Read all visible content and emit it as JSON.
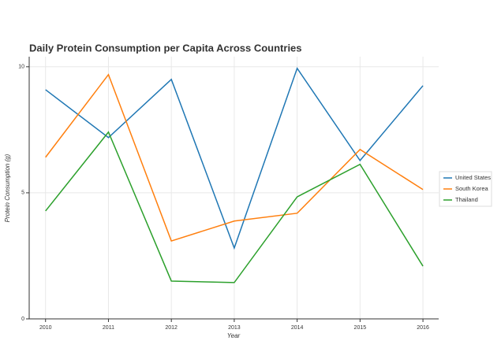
{
  "chart_data": {
    "type": "line",
    "title": "Daily Protein Consumption per Capita Across Countries",
    "x_label": "Year",
    "y_label": "Protein Consumption (g)",
    "x": [
      2010,
      2011,
      2012,
      2013,
      2014,
      2015,
      2016
    ],
    "series": [
      {
        "name": "United States",
        "color": "#1f77b4",
        "values": [
          9.09,
          7.19,
          9.5,
          2.81,
          9.94,
          6.28,
          9.25
        ]
      },
      {
        "name": "South Korea",
        "color": "#ff7f0e",
        "values": [
          6.41,
          9.69,
          3.09,
          3.88,
          4.19,
          6.72,
          5.13
        ]
      },
      {
        "name": "Thailand",
        "color": "#2ca02c",
        "values": [
          4.28,
          7.41,
          1.5,
          1.44,
          4.84,
          6.13,
          2.09
        ]
      }
    ],
    "xlim": [
      2009.74,
      2016.25
    ],
    "ylim": [
      0,
      10.4
    ],
    "xticks": [
      2010,
      2011,
      2012,
      2013,
      2014,
      2015,
      2016
    ],
    "yticks": [
      0,
      5,
      10
    ],
    "grid": true,
    "legend": "right"
  }
}
